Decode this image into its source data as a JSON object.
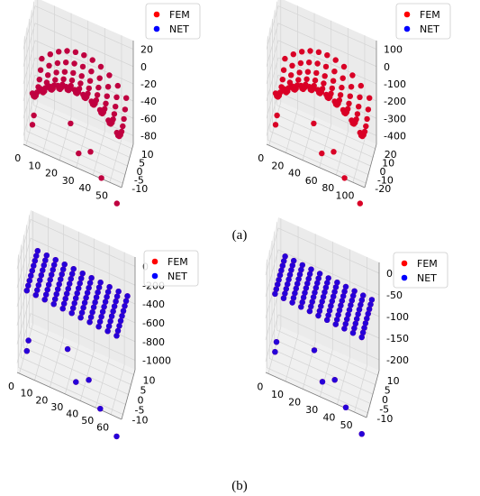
{
  "figure_labels": {
    "a": "(a)",
    "b": "(b)"
  },
  "colors": {
    "fem": "#ff0000",
    "net": "#0000ff"
  },
  "chart_data": [
    {
      "panel": "a-left",
      "type": "scatter3d",
      "legend": [
        {
          "label": "FEM",
          "color": "#ff0000"
        },
        {
          "label": "NET",
          "color": "#0000ff"
        }
      ],
      "legend_position": "top-right",
      "grid": true,
      "x_ticks": [
        "0",
        "10",
        "20",
        "30",
        "40",
        "50"
      ],
      "y_ticks": [
        "10",
        "5",
        "0",
        "-5",
        "-10"
      ],
      "z_ticks": [
        "20",
        "0",
        "-20",
        "-40",
        "-60",
        "-80"
      ],
      "xlim": [
        0,
        52
      ],
      "ylim": [
        -12,
        12
      ],
      "zlim": [
        -95,
        30
      ],
      "surface": "saddle",
      "edge": "hanging",
      "net_alpha": 0.25
    },
    {
      "panel": "a-right",
      "type": "scatter3d",
      "legend": [
        {
          "label": "FEM",
          "color": "#ff0000"
        },
        {
          "label": "NET",
          "color": "#0000ff"
        }
      ],
      "legend_position": "top-right",
      "grid": true,
      "x_ticks": [
        "0",
        "20",
        "40",
        "60",
        "80",
        "100"
      ],
      "y_ticks": [
        "20",
        "10",
        "0",
        "-10",
        "-20"
      ],
      "z_ticks": [
        "100",
        "0",
        "-100",
        "-200",
        "-300",
        "-400"
      ],
      "xlim": [
        0,
        105
      ],
      "ylim": [
        -24,
        24
      ],
      "zlim": [
        -450,
        110
      ],
      "surface": "saddle",
      "edge": "hanging",
      "net_alpha": 0.15
    },
    {
      "panel": "b-left",
      "type": "scatter3d",
      "legend": [
        {
          "label": "FEM",
          "color": "#ff0000"
        },
        {
          "label": "NET",
          "color": "#0000ff"
        }
      ],
      "legend_position": "top-right",
      "grid": true,
      "x_ticks": [
        "0",
        "10",
        "20",
        "30",
        "40",
        "50",
        "60"
      ],
      "y_ticks": [
        "10",
        "5",
        "0",
        "-5",
        "-10"
      ],
      "z_ticks": [
        "0",
        "-200",
        "-400",
        "-600",
        "-800",
        "-1000"
      ],
      "xlim": [
        0,
        63
      ],
      "ylim": [
        -12,
        12
      ],
      "zlim": [
        -1050,
        50
      ],
      "surface": "flat",
      "edge": "hanging",
      "net_alpha": 0.85
    },
    {
      "panel": "b-right",
      "type": "scatter3d",
      "legend": [
        {
          "label": "FEM",
          "color": "#ff0000"
        },
        {
          "label": "NET",
          "color": "#0000ff"
        }
      ],
      "legend_position": "top-right",
      "grid": true,
      "x_ticks": [
        "0",
        "10",
        "20",
        "30",
        "40",
        "50"
      ],
      "y_ticks": [
        "10",
        "5",
        "0",
        "-5",
        "-10"
      ],
      "z_ticks": [
        "0",
        "-50",
        "-100",
        "-150",
        "-200"
      ],
      "xlim": [
        0,
        55
      ],
      "ylim": [
        -12,
        12
      ],
      "zlim": [
        -220,
        15
      ],
      "surface": "flat",
      "edge": "hanging",
      "net_alpha": 0.85
    }
  ]
}
